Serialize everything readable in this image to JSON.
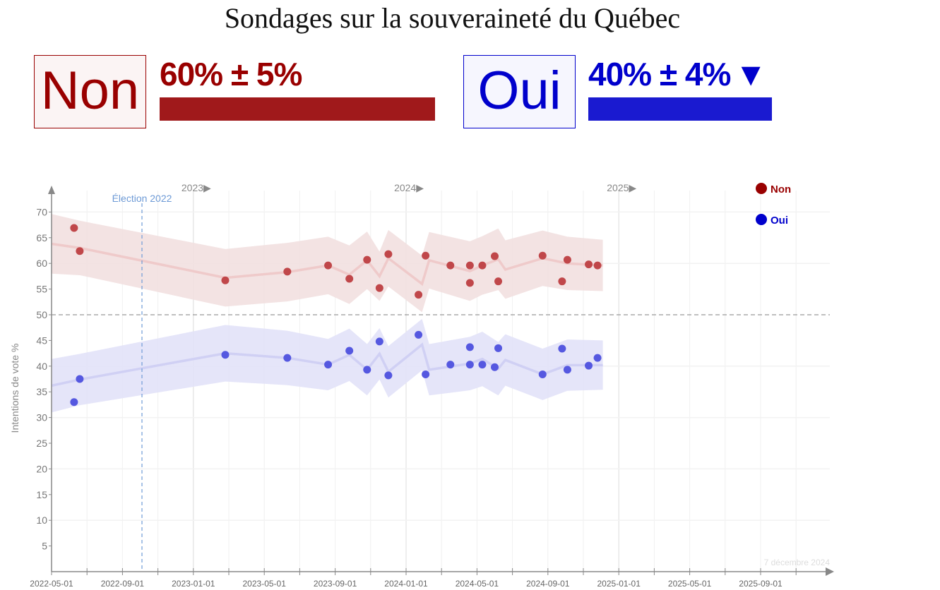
{
  "title": "Sondages sur la souveraineté du Québec",
  "summary": {
    "non": {
      "label": "Non",
      "text": "60% ± 5%",
      "value": 60,
      "color": "#a0191b",
      "text_color": "#990000",
      "box_bg": "#fbf4f4"
    },
    "oui": {
      "label": "Oui",
      "text": "40% ± 4%",
      "trend_icon": "▼",
      "value": 40,
      "color": "#1a1ad0",
      "text_color": "#0000cc",
      "box_bg": "#f6f6fe"
    }
  },
  "chart_data": {
    "type": "scatter",
    "title": "",
    "ylabel": "Intentions de vote %",
    "xlabel": "",
    "x_units": "months since 2022-05-01",
    "xlim": [
      0,
      43
    ],
    "ylim": [
      0,
      73
    ],
    "yticks": [
      5,
      10,
      15,
      20,
      25,
      30,
      35,
      40,
      45,
      50,
      55,
      60,
      65,
      70
    ],
    "xtick_labels": [
      {
        "m": 0,
        "label": "2022-05-01"
      },
      {
        "m": 4,
        "label": "2022-09-01"
      },
      {
        "m": 8,
        "label": "2023-01-01"
      },
      {
        "m": 12,
        "label": "2023-05-01"
      },
      {
        "m": 16,
        "label": "2023-09-01"
      },
      {
        "m": 20,
        "label": "2024-01-01"
      },
      {
        "m": 24,
        "label": "2024-05-01"
      },
      {
        "m": 28,
        "label": "2024-09-01"
      },
      {
        "m": 32,
        "label": "2025-01-01"
      },
      {
        "m": 36,
        "label": "2025-05-01"
      },
      {
        "m": 40,
        "label": "2025-09-01"
      }
    ],
    "year_markers": [
      {
        "m": 8,
        "label": "2023▶"
      },
      {
        "m": 20,
        "label": "2024▶"
      },
      {
        "m": 32,
        "label": "2025▶"
      }
    ],
    "reference_line": {
      "y": 50
    },
    "event": {
      "m": 5.1,
      "label": "Élection 2022"
    },
    "date_note": "7 décembre 2024",
    "legend": [
      {
        "label": "Non",
        "color": "#990000"
      },
      {
        "label": "Oui",
        "color": "#0000cc"
      }
    ],
    "legend_position": "top-right",
    "series": [
      {
        "name": "Non",
        "point_color": "#c0474a",
        "band_color": "#f2e0e0",
        "line_color": "#efcaca",
        "points": [
          [
            1.27,
            66.9
          ],
          [
            1.59,
            62.4
          ],
          [
            9.8,
            56.7
          ],
          [
            13.3,
            58.4
          ],
          [
            15.6,
            59.6
          ],
          [
            16.8,
            57.0
          ],
          [
            17.8,
            60.7
          ],
          [
            18.5,
            55.2
          ],
          [
            19.0,
            61.8
          ],
          [
            20.7,
            53.9
          ],
          [
            21.1,
            61.5
          ],
          [
            22.5,
            59.6
          ],
          [
            23.6,
            59.6
          ],
          [
            23.6,
            56.2
          ],
          [
            24.3,
            59.6
          ],
          [
            25.0,
            61.4
          ],
          [
            25.2,
            56.5
          ],
          [
            27.7,
            61.5
          ],
          [
            28.8,
            56.5
          ],
          [
            29.1,
            60.7
          ],
          [
            30.3,
            59.8
          ],
          [
            30.8,
            59.6
          ]
        ],
        "trend": [
          [
            0,
            63.8
          ],
          [
            1.6,
            63.0
          ],
          [
            9.8,
            57.2
          ],
          [
            13.3,
            58.3
          ],
          [
            15.6,
            59.6
          ],
          [
            16.8,
            57.8
          ],
          [
            17.8,
            60.6
          ],
          [
            18.5,
            57.5
          ],
          [
            19.0,
            61.0
          ],
          [
            20.9,
            56.0
          ],
          [
            21.3,
            60.6
          ],
          [
            23.6,
            58.5
          ],
          [
            24.3,
            59.6
          ],
          [
            25.2,
            60.8
          ],
          [
            25.6,
            58.8
          ],
          [
            27.7,
            61.0
          ],
          [
            29.1,
            60.0
          ],
          [
            31.1,
            59.6
          ]
        ],
        "band_halfwidth": [
          5.8,
          5.3,
          5.6,
          5.7,
          5.6,
          5.7,
          5.6,
          4.8,
          5.5,
          5.5,
          5.5,
          5.8,
          5.7,
          6.0,
          5.7,
          5.4,
          5.2,
          5.0
        ]
      },
      {
        "name": "Oui",
        "point_color": "#5558e0",
        "band_color": "#e2e2f8",
        "line_color": "#d0d0f4",
        "points": [
          [
            1.27,
            33.0
          ],
          [
            1.59,
            37.5
          ],
          [
            9.8,
            42.2
          ],
          [
            13.3,
            41.6
          ],
          [
            15.6,
            40.3
          ],
          [
            16.8,
            43.0
          ],
          [
            17.8,
            39.3
          ],
          [
            18.5,
            44.8
          ],
          [
            19.0,
            38.2
          ],
          [
            20.7,
            46.1
          ],
          [
            21.1,
            38.4
          ],
          [
            22.5,
            40.3
          ],
          [
            23.6,
            43.7
          ],
          [
            23.6,
            40.3
          ],
          [
            24.3,
            40.3
          ],
          [
            25.0,
            39.8
          ],
          [
            25.2,
            43.5
          ],
          [
            27.7,
            38.4
          ],
          [
            28.8,
            43.4
          ],
          [
            29.1,
            39.3
          ],
          [
            30.3,
            40.1
          ],
          [
            30.8,
            41.6
          ]
        ],
        "trend": [
          [
            0,
            36.2
          ],
          [
            1.6,
            37.4
          ],
          [
            9.8,
            42.5
          ],
          [
            13.3,
            41.6
          ],
          [
            15.6,
            40.3
          ],
          [
            16.8,
            42.2
          ],
          [
            17.8,
            39.3
          ],
          [
            18.5,
            42.4
          ],
          [
            19.0,
            38.9
          ],
          [
            20.9,
            44.2
          ],
          [
            21.3,
            39.3
          ],
          [
            23.6,
            40.5
          ],
          [
            24.3,
            41.4
          ],
          [
            25.2,
            39.5
          ],
          [
            25.6,
            41.2
          ],
          [
            27.7,
            38.4
          ],
          [
            29.1,
            40.2
          ],
          [
            31.1,
            40.2
          ]
        ],
        "band_halfwidth": [
          5.2,
          5.0,
          5.5,
          5.3,
          5.0,
          5.1,
          5.0,
          5.0,
          5.0,
          5.0,
          5.0,
          5.2,
          5.3,
          5.2,
          5.0,
          5.0,
          5.0,
          4.8
        ]
      }
    ]
  }
}
